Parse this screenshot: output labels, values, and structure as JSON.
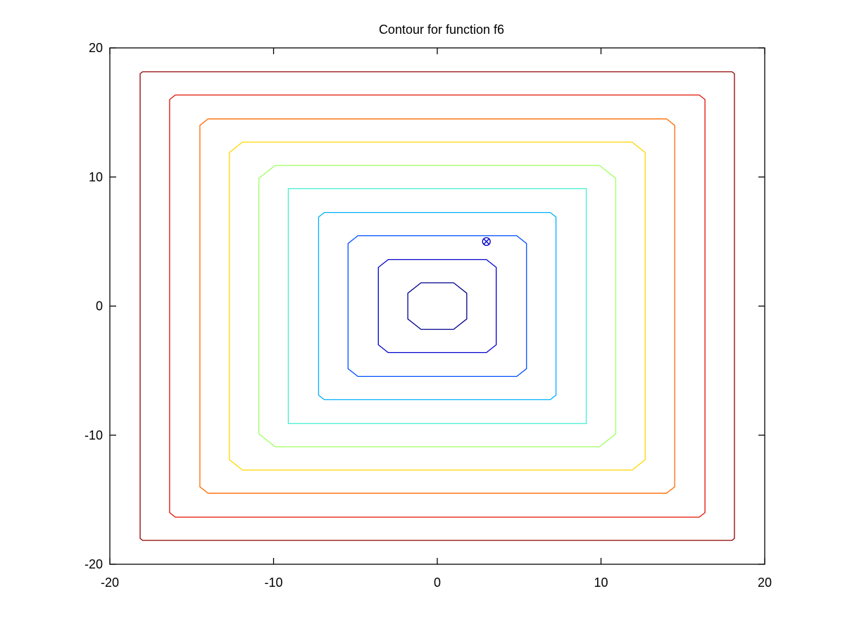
{
  "chart_data": {
    "type": "contour",
    "title": "Contour for function f6",
    "xlabel": "",
    "ylabel": "",
    "xlim": [
      -20,
      20
    ],
    "ylim": [
      -20,
      20
    ],
    "grid": false,
    "x_ticks": [
      -20,
      -10,
      0,
      10,
      20
    ],
    "y_ticks": [
      -20,
      -10,
      0,
      10,
      20
    ],
    "x_tick_labels": [
      "-20",
      "-10",
      "0",
      "10",
      "20"
    ],
    "y_tick_labels": [
      "-20",
      "-10",
      "0",
      "10",
      "20"
    ],
    "contours": [
      {
        "half_width": 1.8,
        "half_height": 1.8,
        "corner": 0.8,
        "color": "#00008f"
      },
      {
        "half_width": 3.6,
        "half_height": 3.6,
        "corner": 0.6,
        "color": "#0000cc"
      },
      {
        "half_width": 5.45,
        "half_height": 5.45,
        "corner": 0.6,
        "color": "#0050ff"
      },
      {
        "half_width": 7.25,
        "half_height": 7.25,
        "corner": 0.35,
        "color": "#00b0ff"
      },
      {
        "half_width": 9.1,
        "half_height": 9.1,
        "corner": 0.0,
        "color": "#40f0d0"
      },
      {
        "half_width": 10.9,
        "half_height": 10.9,
        "corner": 1.0,
        "color": "#a0ff60"
      },
      {
        "half_width": 12.7,
        "half_height": 12.7,
        "corner": 0.8,
        "color": "#ffd700"
      },
      {
        "half_width": 14.5,
        "half_height": 14.5,
        "corner": 0.5,
        "color": "#ff6a00"
      },
      {
        "half_width": 16.35,
        "half_height": 16.35,
        "corner": 0.35,
        "color": "#e01000"
      },
      {
        "half_width": 18.15,
        "half_height": 18.15,
        "corner": 0.15,
        "color": "#900000"
      }
    ],
    "markers": [
      {
        "x": 3.0,
        "y": 5.0,
        "symbol": "circle-x",
        "color": "#0000cc"
      }
    ]
  }
}
